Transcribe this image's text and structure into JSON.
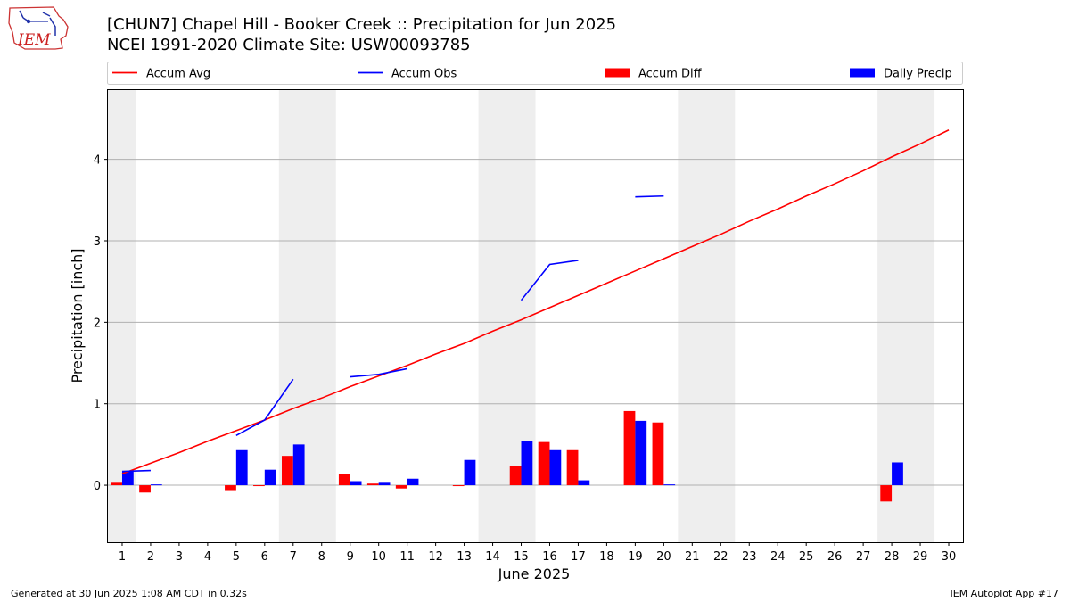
{
  "header": {
    "title_line1": "[CHUN7] Chapel Hill - Booker Creek :: Precipitation for Jun 2025",
    "title_line2": "NCEI 1991-2020 Climate Site: USW00093785",
    "logo_text": "IEM"
  },
  "footer": {
    "generated": "Generated at 30 Jun 2025 1:08 AM CDT in 0.32s",
    "app": "IEM Autoplot App #17"
  },
  "colors": {
    "accum_avg": "#ff0000",
    "accum_obs": "#0000ff",
    "accum_diff": "#ff0000",
    "daily_precip": "#0000ff",
    "weekend_shade": "#eeeeee",
    "grid": "#b0b0b0"
  },
  "chart_data": {
    "type": "bar",
    "xlabel": "June 2025",
    "ylabel": "Precipitation [inch]",
    "xlim": [
      0.5,
      30.5
    ],
    "ylim": [
      -0.7,
      4.85
    ],
    "yticks": [
      0,
      1,
      2,
      3,
      4
    ],
    "ytick_labels": [
      "0",
      "1",
      "2",
      "3",
      "4"
    ],
    "grid": "horizontal",
    "legend": {
      "placement": "top",
      "entries": [
        {
          "label": "Accum Avg",
          "kind": "line",
          "color": "#ff0000"
        },
        {
          "label": "Accum Obs",
          "kind": "line",
          "color": "#0000ff"
        },
        {
          "label": "Accum Diff",
          "kind": "bar",
          "color": "#ff0000"
        },
        {
          "label": "Daily Precip",
          "kind": "bar",
          "color": "#0000ff"
        }
      ]
    },
    "days": [
      1,
      2,
      3,
      4,
      5,
      6,
      7,
      8,
      9,
      10,
      11,
      12,
      13,
      14,
      15,
      16,
      17,
      18,
      19,
      20,
      21,
      22,
      23,
      24,
      25,
      26,
      27,
      28,
      29,
      30
    ],
    "weekends": [
      [
        0.5,
        1.5
      ],
      [
        6.5,
        8.5
      ],
      [
        13.5,
        15.5
      ],
      [
        20.5,
        22.5
      ],
      [
        27.5,
        29.5
      ]
    ],
    "accum_avg": [
      0.14,
      0.27,
      0.4,
      0.54,
      0.67,
      0.8,
      0.94,
      1.07,
      1.21,
      1.34,
      1.47,
      1.61,
      1.74,
      1.89,
      2.03,
      2.18,
      2.33,
      2.48,
      2.63,
      2.78,
      2.93,
      3.08,
      3.24,
      3.39,
      3.55,
      3.7,
      3.86,
      4.03,
      4.19,
      4.36
    ],
    "accum_obs_segments": [
      [
        [
          1,
          0.17
        ],
        [
          2,
          0.18
        ]
      ],
      [
        [
          5,
          0.61
        ],
        [
          6,
          0.8
        ],
        [
          7,
          1.3
        ]
      ],
      [
        [
          9,
          1.33
        ],
        [
          10,
          1.36
        ],
        [
          11,
          1.43
        ]
      ],
      [
        [
          15,
          2.27
        ],
        [
          16,
          2.71
        ],
        [
          17,
          2.76
        ]
      ],
      [
        [
          19,
          3.54
        ],
        [
          20,
          3.55
        ]
      ]
    ],
    "accum_diff": [
      0.03,
      -0.09,
      0,
      0,
      -0.06,
      -0.01,
      0.36,
      0,
      0.14,
      0.02,
      -0.04,
      0,
      -0.01,
      0,
      0.24,
      0.53,
      0.43,
      0,
      0.91,
      0.77,
      0,
      0,
      0,
      0,
      0,
      0,
      0,
      -0.2,
      0,
      0
    ],
    "daily_precip": [
      0.17,
      0.01,
      0,
      0,
      0.43,
      0.19,
      0.5,
      0,
      0.05,
      0.03,
      0.08,
      0,
      0.31,
      0,
      0.54,
      0.43,
      0.06,
      0,
      0.79,
      0.01,
      0,
      0,
      0,
      0,
      0,
      0,
      0,
      0.28,
      0,
      0
    ]
  }
}
